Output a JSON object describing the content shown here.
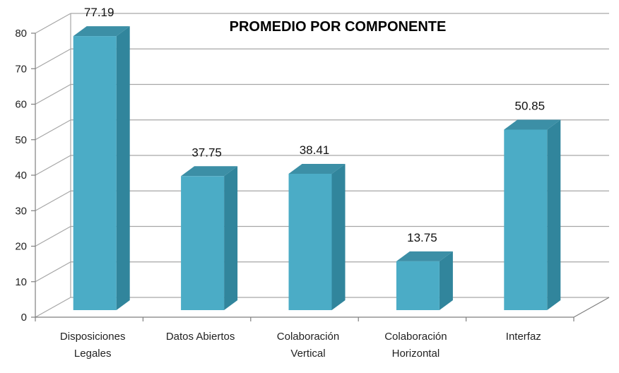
{
  "chart_data": {
    "type": "bar",
    "title": "PROMEDIO POR COMPONENTE",
    "categories": [
      [
        "Disposiciones",
        "Legales"
      ],
      [
        "Datos Abiertos"
      ],
      [
        "Colaboración",
        "Vertical"
      ],
      [
        "Colaboración",
        "Horizontal"
      ],
      [
        "Interfaz"
      ]
    ],
    "values": [
      77.19,
      37.75,
      38.41,
      13.75,
      50.85
    ],
    "value_labels": [
      "77.19",
      "37.75",
      "38.41",
      "13.75",
      "50.85"
    ],
    "xlabel": "",
    "ylabel": "",
    "ylim": [
      0,
      80
    ],
    "y_ticks": [
      "0",
      "10",
      "20",
      "30",
      "40",
      "50",
      "60",
      "70",
      "80"
    ],
    "grid": true,
    "three_d": true,
    "legend": "none",
    "colors": {
      "bar_front": "#4bacc6",
      "bar_side": "#31859c",
      "bar_top": "#3c8fa6",
      "grid": "#a6a6a6",
      "axis": "#7f7f7f"
    }
  }
}
